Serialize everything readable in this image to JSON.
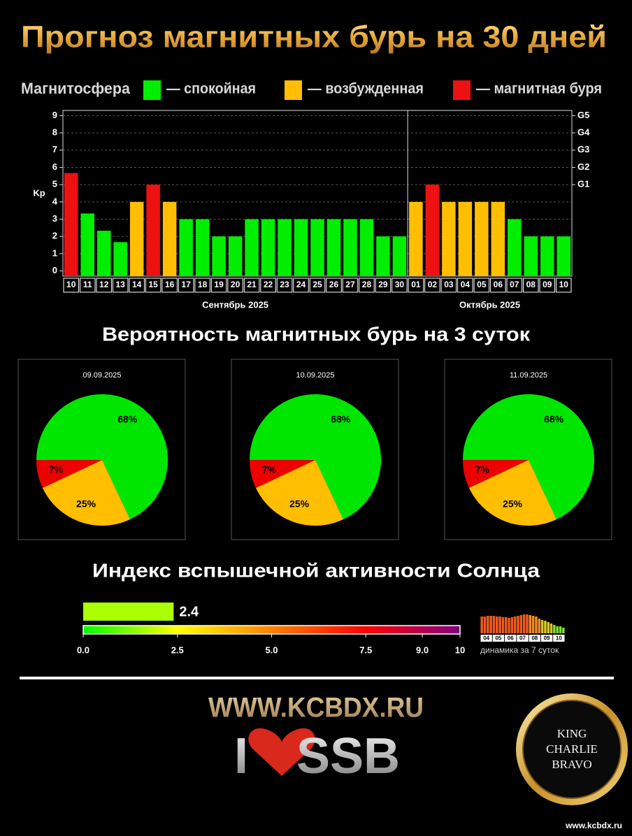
{
  "title": "Прогноз магнитных бурь на 30 дней",
  "sections": [
    "Вероятность магнитных бурь на 3 суток",
    "Индекс вспышечной активности Солнца"
  ],
  "footer": {
    "site": "WWW.KCBDX.RU",
    "love_left": "I",
    "love_right": "SSB",
    "badge": [
      "KING",
      "CHARLIE",
      "BRAVO"
    ],
    "url": "www.kcbdx.ru"
  },
  "chart_data": [
    {
      "type": "bar",
      "ylabel": "Kp",
      "legend": {
        "title": "Магнитосфера",
        "items": [
          {
            "name": "— спокойная",
            "color": "#00ee00"
          },
          {
            "name": "— возбужденная",
            "color": "#ffbf00"
          },
          {
            "name": "— магнитная буря",
            "color": "#ee1111"
          }
        ]
      },
      "groups": [
        {
          "label": "Сентябрь 2025",
          "categories": [
            "10",
            "11",
            "12",
            "13",
            "14",
            "15",
            "16",
            "17",
            "18",
            "19",
            "20",
            "21",
            "22",
            "23",
            "24",
            "25",
            "26",
            "27",
            "28",
            "29",
            "30"
          ],
          "values": [
            5.67,
            3.33,
            2.33,
            1.67,
            4,
            5,
            4,
            3,
            3,
            2,
            2,
            3,
            3,
            3,
            3,
            3,
            3,
            3,
            3,
            2,
            2
          ],
          "colors": [
            "#ee1111",
            "#00ee00",
            "#00ee00",
            "#00ee00",
            "#ffbf00",
            "#ee1111",
            "#ffbf00",
            "#00ee00",
            "#00ee00",
            "#00ee00",
            "#00ee00",
            "#00ee00",
            "#00ee00",
            "#00ee00",
            "#00ee00",
            "#00ee00",
            "#00ee00",
            "#00ee00",
            "#00ee00",
            "#00ee00",
            "#00ee00"
          ]
        },
        {
          "label": "Октябрь 2025",
          "categories": [
            "01",
            "02",
            "03",
            "04",
            "05",
            "06",
            "07",
            "08",
            "09",
            "10"
          ],
          "values": [
            4,
            5,
            4,
            4,
            4,
            4,
            3,
            2,
            2,
            2
          ],
          "colors": [
            "#ffbf00",
            "#ee1111",
            "#ffbf00",
            "#ffbf00",
            "#ffbf00",
            "#ffbf00",
            "#00ee00",
            "#00ee00",
            "#00ee00",
            "#00ee00"
          ]
        }
      ],
      "ylim": [
        -0.3,
        9.3
      ],
      "yticks": [
        0,
        1,
        2,
        3,
        4,
        5,
        6,
        7,
        8,
        9
      ],
      "y2lim": [
        -0.3,
        9.3
      ],
      "y2ticks": [
        {
          "value": 5,
          "label": "G1"
        },
        {
          "value": 6,
          "label": "G2"
        },
        {
          "value": 7,
          "label": "G3"
        },
        {
          "value": 8,
          "label": "G4"
        },
        {
          "value": 9,
          "label": "G5"
        }
      ],
      "grid": true
    },
    {
      "type": "pie",
      "title": "09.09.2025",
      "values": [
        68,
        25,
        7
      ],
      "value_labels": [
        "68%",
        "25%",
        "7%"
      ],
      "colors": [
        "#00e600",
        "#ffbf00",
        "#ee0000"
      ]
    },
    {
      "type": "pie",
      "title": "10.09.2025",
      "values": [
        68,
        25,
        7
      ],
      "value_labels": [
        "68%",
        "25%",
        "7%"
      ],
      "colors": [
        "#00e600",
        "#ffbf00",
        "#ee0000"
      ]
    },
    {
      "type": "pie",
      "title": "11.09.2025",
      "values": [
        68,
        25,
        7
      ],
      "value_labels": [
        "68%",
        "25%",
        "7%"
      ],
      "colors": [
        "#00e600",
        "#ffbf00",
        "#ee0000"
      ]
    },
    {
      "type": "gauge",
      "value": 2.4,
      "color": "#aaff00",
      "xlim": [
        0,
        10
      ],
      "xticks": [
        {
          "value": 0,
          "label": "0.0"
        },
        2.5,
        {
          "value": 5,
          "label": "5.0"
        },
        7.5,
        {
          "value": 9,
          "label": "9.0"
        },
        10
      ],
      "gradient": [
        "#00ff00",
        "#ffff00",
        "#ff8000",
        "#ff0000",
        "#800080"
      ]
    },
    {
      "type": "bar",
      "title": "динамика за 7 суток",
      "ylim": [
        0,
        30
      ],
      "groups": [
        {
          "label": "04",
          "values": [
            24,
            24,
            25,
            25
          ],
          "color": "#ee5a1e"
        },
        {
          "label": "05",
          "values": [
            25,
            24,
            24,
            23
          ],
          "color": "#ee5a1e"
        },
        {
          "label": "06",
          "values": [
            23,
            22,
            23,
            24
          ],
          "color": "#ee5a1e"
        },
        {
          "label": "07",
          "values": [
            25,
            26,
            27,
            27
          ],
          "color": "#ee5a1e"
        },
        {
          "label": "08",
          "values": [
            26,
            25,
            24,
            21
          ],
          "color": "#f08a20"
        },
        {
          "label": "09",
          "values": [
            19,
            18,
            16,
            14
          ],
          "color": "#d9c62a"
        },
        {
          "label": "10",
          "values": [
            12,
            10,
            10,
            8
          ],
          "color": "#7fdd2a"
        }
      ]
    }
  ]
}
